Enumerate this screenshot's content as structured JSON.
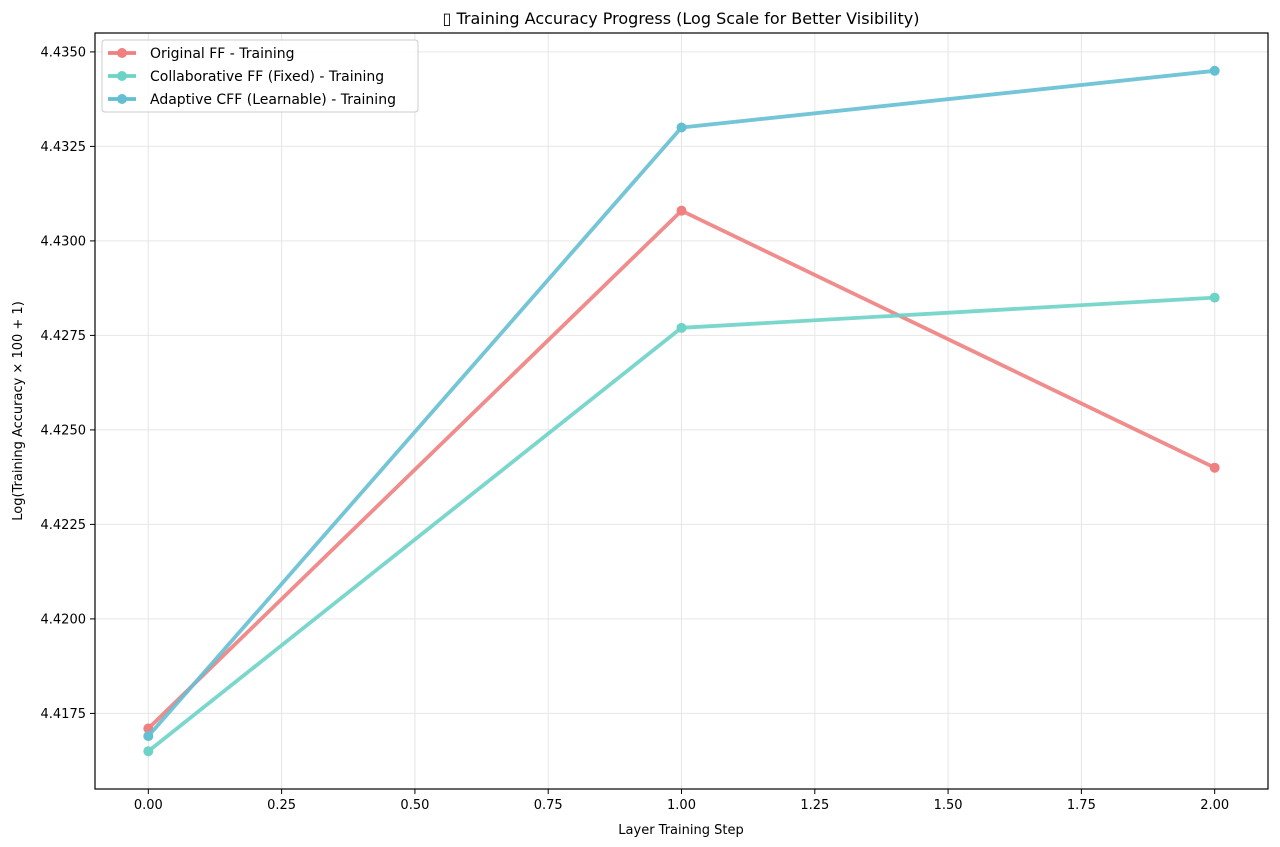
{
  "chart_data": {
    "type": "line",
    "title": "▯ Training Accuracy Progress (Log Scale for Better Visibility)",
    "xlabel": "Layer Training Step",
    "ylabel": "Log(Training Accuracy × 100 + 1)",
    "xlim": [
      -0.1,
      2.1
    ],
    "ylim": [
      4.4155,
      4.4355
    ],
    "xticks": [
      0.0,
      0.25,
      0.5,
      0.75,
      1.0,
      1.25,
      1.5,
      1.75,
      2.0
    ],
    "xtick_labels": [
      "0.00",
      "0.25",
      "0.50",
      "0.75",
      "1.00",
      "1.25",
      "1.50",
      "1.75",
      "2.00"
    ],
    "yticks": [
      4.4175,
      4.42,
      4.4225,
      4.425,
      4.4275,
      4.43,
      4.4325,
      4.435
    ],
    "ytick_labels": [
      "4.4175",
      "4.4200",
      "4.4225",
      "4.4250",
      "4.4275",
      "4.4300",
      "4.4325",
      "4.4350"
    ],
    "grid": true,
    "legend_position": "top-left",
    "x": [
      0,
      1,
      2
    ],
    "series": [
      {
        "name": "Original FF - Training",
        "color": "#f07f7f",
        "values": [
          4.4171,
          4.4308,
          4.424
        ]
      },
      {
        "name": "Collaborative FF (Fixed) - Training",
        "color": "#6dd3c6",
        "values": [
          4.4165,
          4.4277,
          4.4285
        ]
      },
      {
        "name": "Adaptive CFF (Learnable) - Training",
        "color": "#64bfd3",
        "values": [
          4.4169,
          4.433,
          4.4345
        ]
      }
    ]
  }
}
